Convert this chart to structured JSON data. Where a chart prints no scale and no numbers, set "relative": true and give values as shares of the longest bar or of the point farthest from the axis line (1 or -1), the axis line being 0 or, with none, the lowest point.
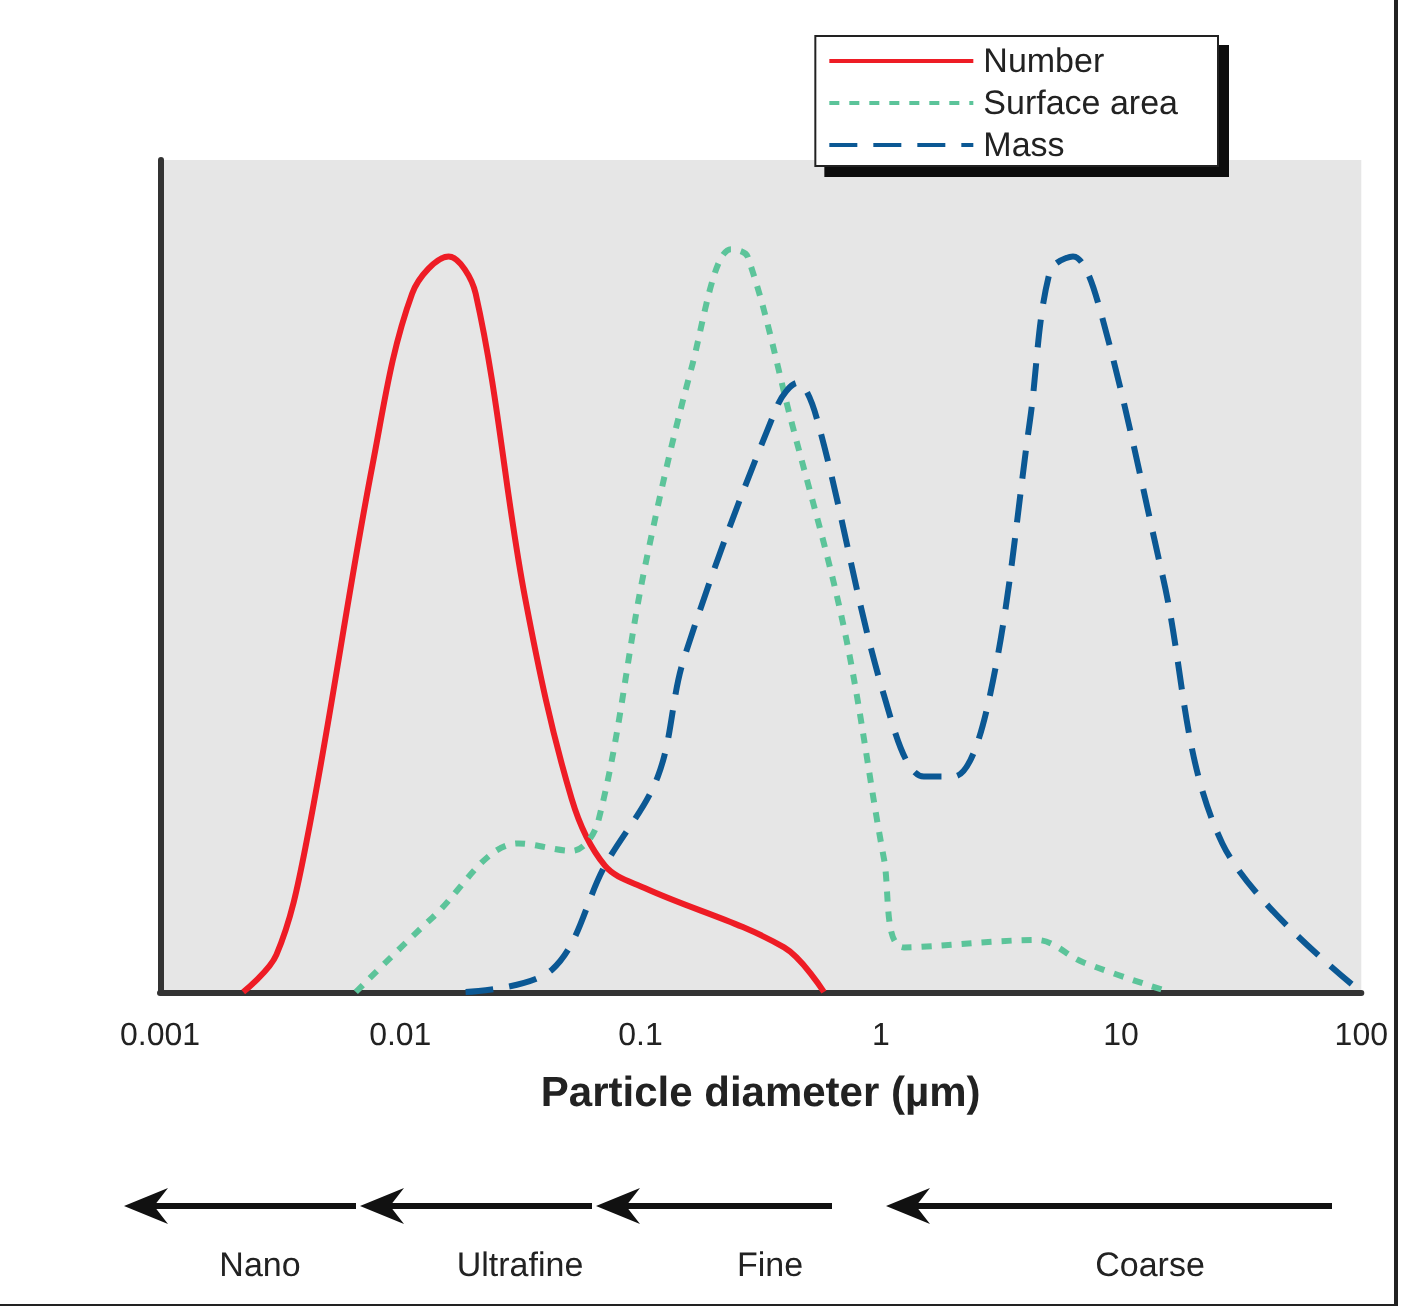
{
  "chart_data": {
    "type": "line",
    "relative": true,
    "xlabel": "Particle diameter (µm)",
    "log": "x",
    "xlim": [
      0.001,
      100
    ],
    "xticks": [
      0.001,
      0.01,
      0.1,
      1,
      10,
      100
    ],
    "legend": "top right",
    "marker": "none",
    "grid": false,
    "annotations": [
      "Nano",
      "Ultrafine",
      "Fine",
      "Coarse"
    ],
    "series": [
      {
        "name": "Number",
        "color": "#ee1c25",
        "line_style": "solid",
        "x": [
          0.00222,
          0.00305,
          0.00406,
          0.00767,
          0.0112,
          0.0159,
          0.0206,
          0.0331,
          0.0517,
          0.0711,
          0.104,
          0.396,
          0.58
        ],
        "values": [
          0,
          0.05,
          0.2,
          0.71,
          0.94,
          0.99,
          0.94,
          0.53,
          0.26,
          0.17,
          0.14,
          0.06,
          0
        ]
      },
      {
        "name": "Surface area",
        "color": "#5cc49a",
        "line_style": "dotted",
        "x": [
          0.00653,
          0.0136,
          0.0311,
          0.0518,
          0.0667,
          0.104,
          0.163,
          0.238,
          0.279,
          0.423,
          0.703,
          1.03,
          1.25,
          4.46,
          6.95,
          15.9
        ],
        "values": [
          0,
          0.1,
          0.2,
          0.19,
          0.23,
          0.57,
          0.84,
          1,
          0.99,
          0.77,
          0.49,
          0.18,
          0.06,
          0.07,
          0.04,
          0
        ]
      },
      {
        "name": "Mass",
        "color": "#0b5894",
        "line_style": "dashed",
        "x": [
          0.0187,
          0.0428,
          0.0711,
          0.118,
          0.152,
          0.372,
          0.45,
          0.544,
          1.03,
          1.51,
          2.01,
          2.85,
          4.18,
          5.06,
          6.31,
          8.15,
          14.9,
          26.4,
          100
        ],
        "values": [
          0,
          0.03,
          0.17,
          0.29,
          0.45,
          0.79,
          0.82,
          0.77,
          0.4,
          0.29,
          0.29,
          0.4,
          0.77,
          0.97,
          0.99,
          0.92,
          0.56,
          0.2,
          0
        ]
      }
    ]
  }
}
